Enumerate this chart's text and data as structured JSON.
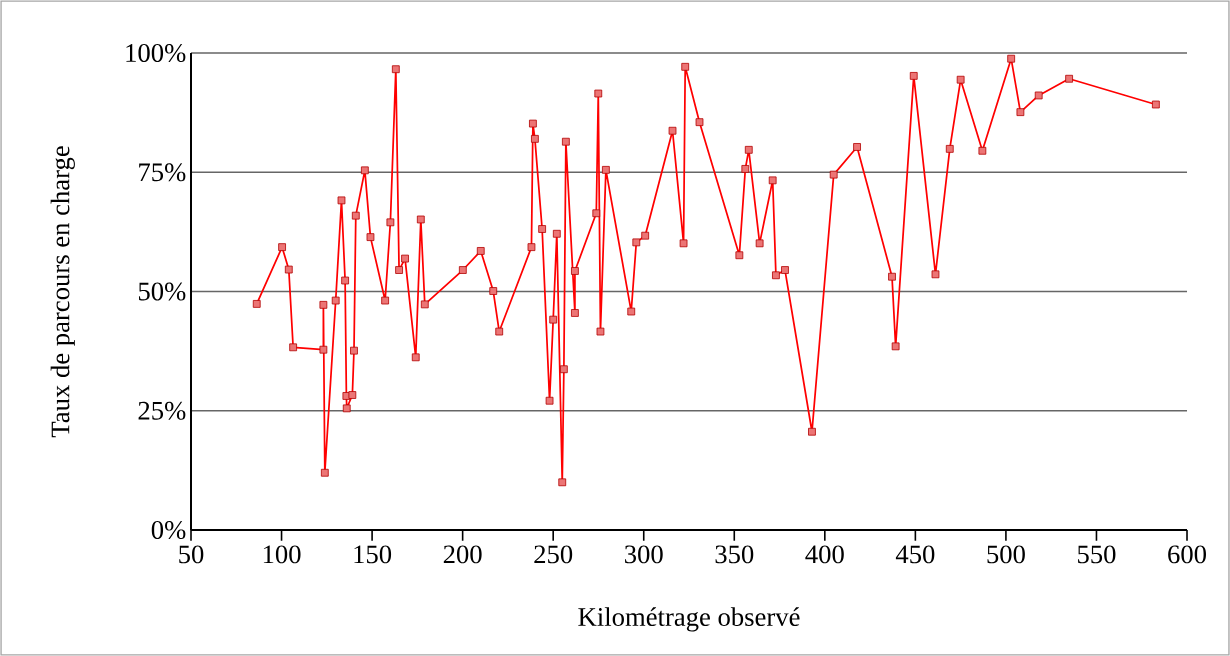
{
  "chart_data": {
    "type": "line",
    "xlabel": "Kilométrage observé",
    "ylabel": "Taux de parcours en charge",
    "x": [
      86.3,
      100.3,
      104.0,
      106.4,
      123.1,
      123.1,
      123.9,
      129.9,
      133.1,
      135.1,
      135.8,
      136.0,
      139.1,
      140.0,
      141.0,
      146.0,
      149.1,
      157.2,
      160.1,
      163.1,
      164.9,
      168.2,
      174.1,
      176.9,
      179.1,
      200.1,
      210.0,
      216.9,
      220.2,
      238.0,
      238.8,
      239.9,
      243.9,
      248.0,
      250.0,
      252.0,
      255.0,
      255.9,
      257.0,
      262.0,
      262.0,
      273.8,
      274.9,
      276.1,
      279.1,
      293.1,
      295.9,
      300.8,
      315.9,
      322.0,
      322.9,
      330.8,
      352.8,
      356.1,
      358.0,
      364.0,
      371.2,
      373.0,
      378.0,
      392.9,
      404.9,
      417.8,
      437.1,
      439.1,
      449.1,
      461.1,
      469.0,
      475.0,
      487.0,
      502.9,
      508.0,
      518.1,
      534.9,
      582.8
    ],
    "series": [
      {
        "color": "#ff0000",
        "values": [
          47.4,
          59.3,
          54.6,
          38.3,
          37.8,
          47.2,
          12.0,
          48.1,
          69.1,
          52.3,
          28.1,
          25.5,
          28.3,
          37.6,
          65.9,
          75.4,
          61.4,
          48.1,
          64.5,
          96.6,
          54.5,
          56.9,
          36.2,
          65.1,
          47.3,
          54.5,
          58.5,
          50.1,
          41.6,
          59.3,
          85.2,
          82.0,
          63.1,
          27.1,
          44.1,
          62.1,
          10.0,
          33.7,
          81.4,
          45.5,
          54.3,
          66.4,
          91.5,
          41.6,
          75.5,
          45.8,
          60.3,
          61.7,
          83.7,
          60.1,
          97.1,
          85.5,
          57.6,
          75.7,
          79.7,
          60.1,
          73.3,
          53.4,
          54.5,
          20.6,
          74.5,
          80.3,
          53.1,
          38.5,
          95.2,
          53.6,
          79.9,
          94.4,
          79.5,
          98.8,
          87.6,
          91.1,
          94.6,
          89.2
        ]
      }
    ],
    "xlim": [
      50,
      600
    ],
    "xticks": [
      50,
      100,
      150,
      200,
      250,
      300,
      350,
      400,
      450,
      500,
      550,
      600
    ],
    "ylim": [
      0,
      100
    ],
    "yticks": [
      {
        "value": 0,
        "label": "0%"
      },
      {
        "value": 25,
        "label": "25%"
      },
      {
        "value": 50,
        "label": "50%"
      },
      {
        "value": 75,
        "label": "75%"
      },
      {
        "value": 100,
        "label": "100%"
      }
    ],
    "grid": "y",
    "marker": "square",
    "line_style": "solid"
  }
}
